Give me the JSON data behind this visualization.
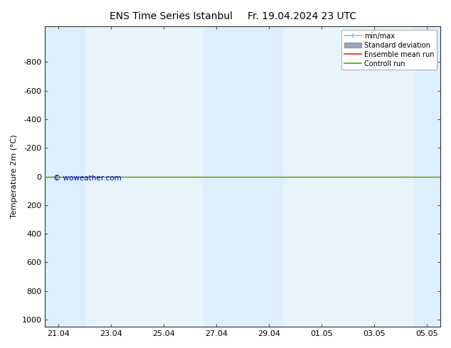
{
  "title": "ENS Time Series Istanbul",
  "subtitle": "Fr. 19.04.2024 23 UTC",
  "ylabel": "Temperature 2m (°C)",
  "watermark": "© woweather.com",
  "watermark_color": "#0000bb",
  "ylim_top": -1050,
  "ylim_bottom": 1050,
  "ytick_values": [
    -800,
    -600,
    -400,
    -200,
    0,
    200,
    400,
    600,
    800,
    1000
  ],
  "ytick_labels": [
    "-800",
    "-600",
    "-400",
    "-200",
    "0",
    "200",
    "400",
    "600",
    "800",
    "1000"
  ],
  "x_dates": [
    "21.04",
    "23.04",
    "25.04",
    "27.04",
    "29.04",
    "01.05",
    "03.05",
    "05.05"
  ],
  "x_positions": [
    0,
    2,
    4,
    6,
    8,
    10,
    12,
    14
  ],
  "x_min": -0.5,
  "x_max": 14.5,
  "shaded_bands": [
    {
      "x_start": -0.5,
      "x_end": 1.0,
      "color": "#ddeeff"
    },
    {
      "x_start": 5.5,
      "x_end": 8.5,
      "color": "#ddeeff"
    },
    {
      "x_start": 13.5,
      "x_end": 14.5,
      "color": "#ddeeff"
    }
  ],
  "control_run_y": 0,
  "control_run_color": "#44aa00",
  "ensemble_mean_color": "#ff2200",
  "plot_bg_color": "#e8f4fc",
  "background_color": "#ffffff",
  "legend_labels": [
    "min/max",
    "Standard deviation",
    "Ensemble mean run",
    "Controll run"
  ],
  "legend_line_colors": [
    "#aabbcc",
    "#99aabb",
    "#ff2200",
    "#44aa00"
  ],
  "title_fontsize": 10,
  "axis_label_fontsize": 8,
  "tick_fontsize": 8,
  "legend_fontsize": 7
}
